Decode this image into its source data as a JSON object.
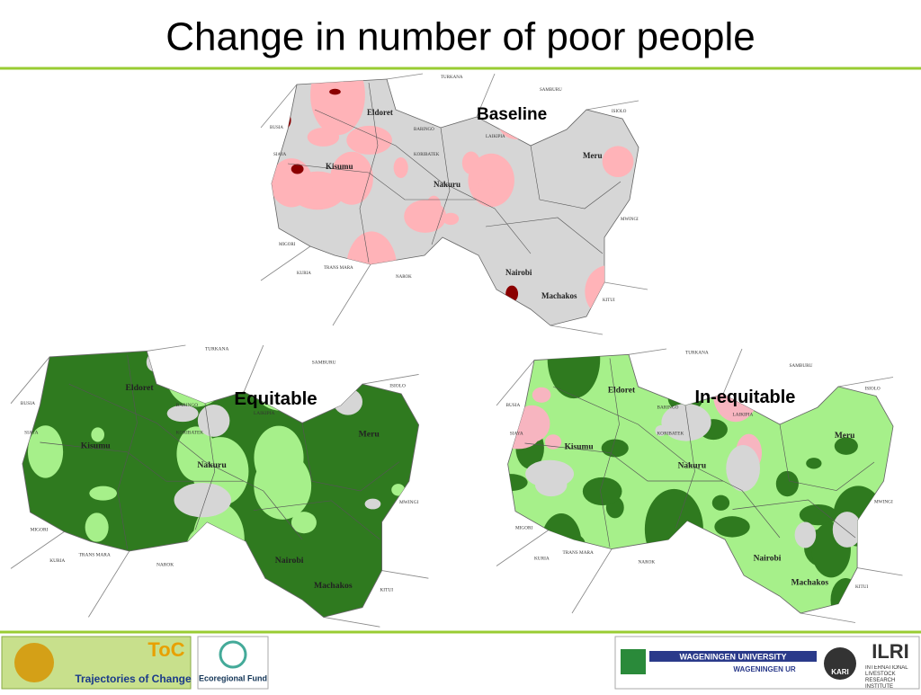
{
  "title": "Change in number of poor people",
  "maps": [
    {
      "label": "Baseline",
      "places": [
        "Eldoret",
        "Kisumu",
        "Nakuru",
        "Nairobi",
        "Machakos",
        "Meru",
        "TURKANA",
        "SAMBURU",
        "ISIOLO",
        "LAIKIPIA",
        "BARINGO",
        "NAROK",
        "KITUI",
        "MWINGI",
        "KORIBATEK",
        "TRANS MARA",
        "KURIA",
        "MIGORI",
        "SIAYA",
        "BUSIA"
      ]
    },
    {
      "label": "Equitable",
      "places": [
        "Eldoret",
        "Kisumu",
        "Nakuru",
        "Nairobi",
        "Machakos",
        "Meru",
        "TURKANA",
        "SAMBURU",
        "ISIOLO",
        "LAIKIPIA",
        "BARINGO",
        "NAROK",
        "KITUI",
        "MWINGI",
        "KORIBATEK",
        "TRANS MARA",
        "KURIA",
        "MIGORI",
        "SIAYA",
        "BUSIA"
      ]
    },
    {
      "label": "In-equitable",
      "places": [
        "Eldoret",
        "Kisumu",
        "Nakuru",
        "Nairobi",
        "Machakos",
        "Meru",
        "TURKANA",
        "SAMBURU",
        "ISIOLO",
        "LAIKIPIA",
        "BARINGO",
        "NAROK",
        "KITUI",
        "MWINGI",
        "KORIBATEK",
        "TRANS MARA",
        "KURIA",
        "MIGORI",
        "SIAYA",
        "BUSIA"
      ]
    }
  ],
  "footer": {
    "toc_logo": "ToC",
    "toc_name": "Trajectories of Change",
    "eco_fund": "Ecoregional Fund",
    "wageningen": "WAGENINGEN UNIVERSITY",
    "wageningen_ur": "WAGENINGEN UR",
    "kari": "KARI",
    "ilri": "ILRI",
    "ilri_full": "INTERNATIONAL LIVESTOCK RESEARCH INSTITUTE"
  }
}
